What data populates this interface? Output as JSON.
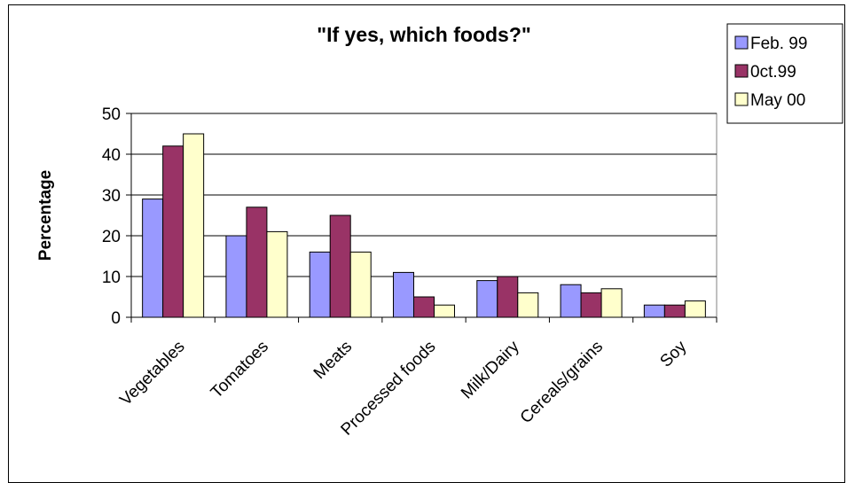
{
  "chart_data": {
    "type": "bar",
    "title": "\"If yes, which foods?\"",
    "xlabel": "",
    "ylabel": "Percentage",
    "categories": [
      "Vegetables",
      "Tomatoes",
      "Meats",
      "Processed foods",
      "Milk/Dairy",
      "Cereals/grains",
      "Soy"
    ],
    "ylim": [
      0,
      50
    ],
    "yticks": [
      0,
      10,
      20,
      30,
      40,
      50
    ],
    "grid": true,
    "legend_position": "top-right",
    "series": [
      {
        "name": "Feb. 99",
        "color": "#9999ff",
        "values": [
          29,
          20,
          16,
          11,
          9,
          8,
          3
        ]
      },
      {
        "name": "0ct.99",
        "color": "#993366",
        "values": [
          42,
          27,
          25,
          5,
          10,
          6,
          3
        ]
      },
      {
        "name": "May 00",
        "color": "#ffffcc",
        "values": [
          45,
          21,
          16,
          3,
          6,
          7,
          4
        ]
      }
    ]
  }
}
